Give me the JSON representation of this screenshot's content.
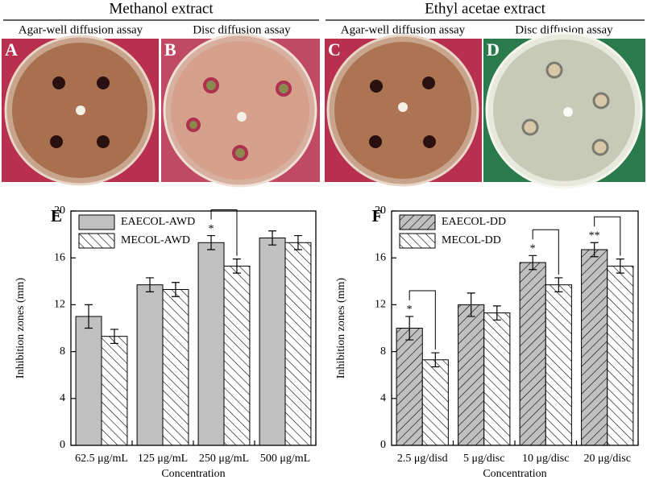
{
  "header": {
    "groups": [
      "Methanol extract",
      "Ethyl acetae extract"
    ],
    "assays": [
      "Agar-well diffusion assay",
      "Disc diffusion assay",
      "Agar-well diffusion assay",
      "Disc diffusion assay"
    ],
    "panels": [
      "A",
      "B",
      "C",
      "D"
    ]
  },
  "chart_data": [
    {
      "type": "bar",
      "panel": "E",
      "x_label": "Concentration",
      "y_label": "Inhibition zones (mm)",
      "categories": [
        "62.5 μg/mL",
        "125 μg/mL",
        "250 μg/mL",
        "500 μg/mL"
      ],
      "series": [
        {
          "name": "EAECOL-AWD",
          "color": "#c0c0c0",
          "hatch": false,
          "values": [
            11.0,
            13.7,
            17.3,
            17.7
          ],
          "errors": [
            1.0,
            0.6,
            0.6,
            0.6
          ]
        },
        {
          "name": "MECOL-AWD",
          "color": "#ffffff",
          "hatch": true,
          "values": [
            9.3,
            13.3,
            15.3,
            17.3
          ],
          "errors": [
            0.6,
            0.6,
            0.6,
            0.6
          ]
        }
      ],
      "significance": [
        null,
        null,
        "*",
        null
      ],
      "ylim": [
        0,
        20
      ],
      "yticks": [
        0,
        4,
        8,
        12,
        16,
        20
      ],
      "grid": false
    },
    {
      "type": "bar",
      "panel": "F",
      "x_label": "Concentration",
      "y_label": "Inhibition zones (mm)",
      "categories": [
        "2.5 μg/disd",
        "5 μg/disc",
        "10 μg/disc",
        "20 μg/disc"
      ],
      "series": [
        {
          "name": "EAECOL-DD",
          "color": "#c0c0c0",
          "hatch": true,
          "values": [
            10.0,
            12.0,
            15.6,
            16.7
          ],
          "errors": [
            1.0,
            1.0,
            0.6,
            0.6
          ]
        },
        {
          "name": "MECOL-DD",
          "color": "#ffffff",
          "hatch": true,
          "values": [
            7.3,
            11.3,
            13.7,
            15.3
          ],
          "errors": [
            0.6,
            0.6,
            0.6,
            0.6
          ]
        }
      ],
      "significance": [
        "*",
        null,
        "*",
        "**"
      ],
      "ylim": [
        0,
        20
      ],
      "yticks": [
        0,
        4,
        8,
        12,
        16,
        20
      ],
      "grid": false
    }
  ]
}
